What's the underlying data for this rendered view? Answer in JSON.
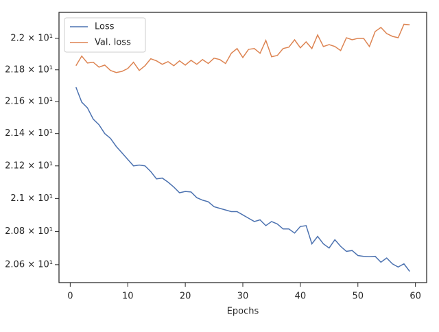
{
  "chart_data": {
    "type": "line",
    "xlabel": "Epochs",
    "x": [
      1,
      2,
      3,
      4,
      5,
      6,
      7,
      8,
      9,
      10,
      11,
      12,
      13,
      14,
      15,
      16,
      17,
      18,
      19,
      20,
      21,
      22,
      23,
      24,
      25,
      26,
      27,
      28,
      29,
      30,
      31,
      32,
      33,
      34,
      35,
      36,
      37,
      38,
      39,
      40,
      41,
      42,
      43,
      44,
      45,
      46,
      47,
      48,
      49,
      50,
      51,
      52,
      53,
      54,
      55,
      56,
      57,
      58,
      59
    ],
    "series": [
      {
        "name": "Loss",
        "color": "#4c72b0",
        "values": [
          21.69,
          21.596,
          21.56,
          21.49,
          21.455,
          21.4,
          21.37,
          21.32,
          21.28,
          21.24,
          21.2,
          21.205,
          21.2,
          21.165,
          21.12,
          21.125,
          21.1,
          21.07,
          21.035,
          21.043,
          21.04,
          21.005,
          20.99,
          20.98,
          20.95,
          20.94,
          20.93,
          20.92,
          20.92,
          20.9,
          20.88,
          20.86,
          20.87,
          20.835,
          20.86,
          20.845,
          20.815,
          20.815,
          20.79,
          20.83,
          20.835,
          20.725,
          20.77,
          20.725,
          20.7,
          20.75,
          20.71,
          20.68,
          20.685,
          20.655,
          20.65,
          20.648,
          20.65,
          20.615,
          20.64,
          20.605,
          20.586,
          20.605,
          20.56
        ]
      },
      {
        "name": "Val. loss",
        "color": "#dd8452",
        "values": [
          21.826,
          21.887,
          21.843,
          21.848,
          21.817,
          21.83,
          21.796,
          21.783,
          21.79,
          21.808,
          21.848,
          21.796,
          21.826,
          21.87,
          21.857,
          21.835,
          21.852,
          21.826,
          21.857,
          21.83,
          21.86,
          21.835,
          21.865,
          21.84,
          21.874,
          21.865,
          21.84,
          21.905,
          21.935,
          21.878,
          21.93,
          21.935,
          21.905,
          21.987,
          21.883,
          21.891,
          21.935,
          21.944,
          21.991,
          21.94,
          21.978,
          21.935,
          22.022,
          21.948,
          21.96,
          21.948,
          21.922,
          22.004,
          21.991,
          22.0,
          22.0,
          21.948,
          22.044,
          22.07,
          22.031,
          22.013,
          22.004,
          22.09,
          22.087
        ]
      }
    ],
    "xlim": [
      -1.95,
      61.95
    ],
    "xticks": [
      0,
      10,
      20,
      30,
      40,
      50,
      60
    ],
    "ylim": [
      20.493,
      22.167
    ],
    "yscale": "log",
    "yticks": [
      {
        "value": 20.6,
        "label": "2.06 × 10¹"
      },
      {
        "value": 20.8,
        "label": "2.08 × 10¹"
      },
      {
        "value": 21.0,
        "label": "2.1 × 10¹"
      },
      {
        "value": 21.2,
        "label": "2.12 × 10¹"
      },
      {
        "value": 21.4,
        "label": "2.14 × 10¹"
      },
      {
        "value": 21.6,
        "label": "2.16 × 10¹"
      },
      {
        "value": 21.8,
        "label": "2.18 × 10¹"
      },
      {
        "value": 22.0,
        "label": "2.2 × 10¹"
      }
    ],
    "legend": "upper left",
    "grid": false
  }
}
